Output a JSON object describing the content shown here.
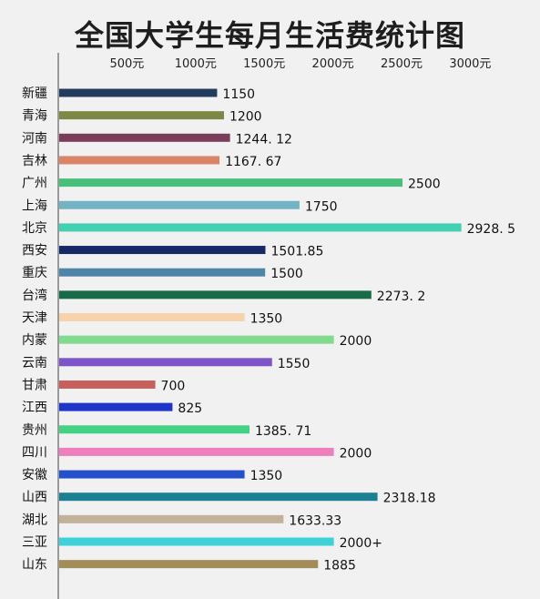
{
  "chart_data": {
    "type": "bar",
    "orientation": "horizontal",
    "title": "全国大学生每月生活费统计图",
    "xlabel": "",
    "ylabel": "",
    "xlim": [
      0,
      3200
    ],
    "tick_values": [
      500,
      1000,
      1500,
      2000,
      2500,
      3000
    ],
    "tick_labels": [
      "500元",
      "1000元",
      "1500元",
      "2000元",
      "2500元",
      "3000元"
    ],
    "grid": false,
    "legend": "none",
    "bars": [
      {
        "category": "新疆",
        "value": 1150,
        "label": "1150",
        "color": "#233c5e"
      },
      {
        "category": "青海",
        "value": 1200,
        "label": "1200",
        "color": "#7c8945"
      },
      {
        "category": "河南",
        "value": 1244.12,
        "label": "1244. 12",
        "color": "#7a3d5a"
      },
      {
        "category": "吉林",
        "value": 1167.67,
        "label": "1167. 67",
        "color": "#d98466"
      },
      {
        "category": "广州",
        "value": 2500,
        "label": "2500",
        "color": "#47c07a"
      },
      {
        "category": "上海",
        "value": 1750,
        "label": "1750",
        "color": "#73b3c3"
      },
      {
        "category": "北京",
        "value": 2928.5,
        "label": "2928. 5",
        "color": "#41d0b0"
      },
      {
        "category": "西安",
        "value": 1501.85,
        "label": "1501.85",
        "color": "#172a66"
      },
      {
        "category": "重庆",
        "value": 1500,
        "label": "1500",
        "color": "#4e86a7"
      },
      {
        "category": "台湾",
        "value": 2273.2,
        "label": "2273. 2",
        "color": "#196a48"
      },
      {
        "category": "天津",
        "value": 1350,
        "label": "1350",
        "color": "#f7d3ab"
      },
      {
        "category": "内蒙",
        "value": 2000,
        "label": "2000",
        "color": "#82da8f"
      },
      {
        "category": "云南",
        "value": 1550,
        "label": "1550",
        "color": "#7d55c8"
      },
      {
        "category": "甘肃",
        "value": 700,
        "label": "700",
        "color": "#c7605c"
      },
      {
        "category": "江西",
        "value": 825,
        "label": "825",
        "color": "#1d36c9"
      },
      {
        "category": "贵州",
        "value": 1385.71,
        "label": "1385. 71",
        "color": "#43d183"
      },
      {
        "category": "四川",
        "value": 2000,
        "label": "2000",
        "color": "#ee7fbc"
      },
      {
        "category": "安徽",
        "value": 1350,
        "label": "1350",
        "color": "#2550cc"
      },
      {
        "category": "山西",
        "value": 2318.18,
        "label": "2318.18",
        "color": "#1b8094"
      },
      {
        "category": "湖北",
        "value": 1633.33,
        "label": "1633.33",
        "color": "#c2b29a"
      },
      {
        "category": "三亚",
        "value": 2000,
        "label": "2000+",
        "color": "#3ed1da"
      },
      {
        "category": "山东",
        "value": 1885,
        "label": "1885",
        "color": "#a38d56"
      }
    ]
  }
}
